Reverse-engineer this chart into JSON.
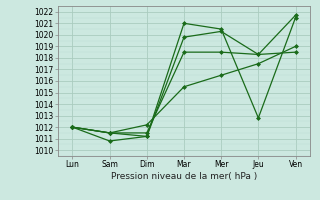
{
  "xlabel": "Pression niveau de la mer( hPa )",
  "x_labels": [
    "Lun",
    "Sam",
    "Dim",
    "Mar",
    "Mer",
    "Jeu",
    "Ven"
  ],
  "x_positions": [
    0,
    1,
    2,
    3,
    4,
    5,
    6
  ],
  "ylim": [
    1009.5,
    1022.5
  ],
  "yticks": [
    1010,
    1011,
    1012,
    1013,
    1014,
    1015,
    1016,
    1017,
    1018,
    1019,
    1020,
    1021,
    1022
  ],
  "bg_color": "#cce8e0",
  "grid_color_major": "#aaccbf",
  "grid_color_minor": "#bbddd5",
  "line_color": "#1a6b1a",
  "marker": "D",
  "markersize": 2.0,
  "linewidth": 0.9,
  "lines": [
    [
      1012.0,
      1010.8,
      1011.2,
      1021.0,
      1020.5,
      1012.8,
      1021.5
    ],
    [
      1012.0,
      1011.5,
      1011.2,
      1019.8,
      1020.3,
      1018.3,
      1021.7
    ],
    [
      1012.0,
      1011.5,
      1011.5,
      1018.5,
      1018.5,
      1018.3,
      1018.5
    ],
    [
      1012.0,
      1011.5,
      1012.2,
      1015.5,
      1016.5,
      1017.5,
      1019.0
    ]
  ],
  "figsize": [
    3.2,
    2.0
  ],
  "dpi": 100
}
